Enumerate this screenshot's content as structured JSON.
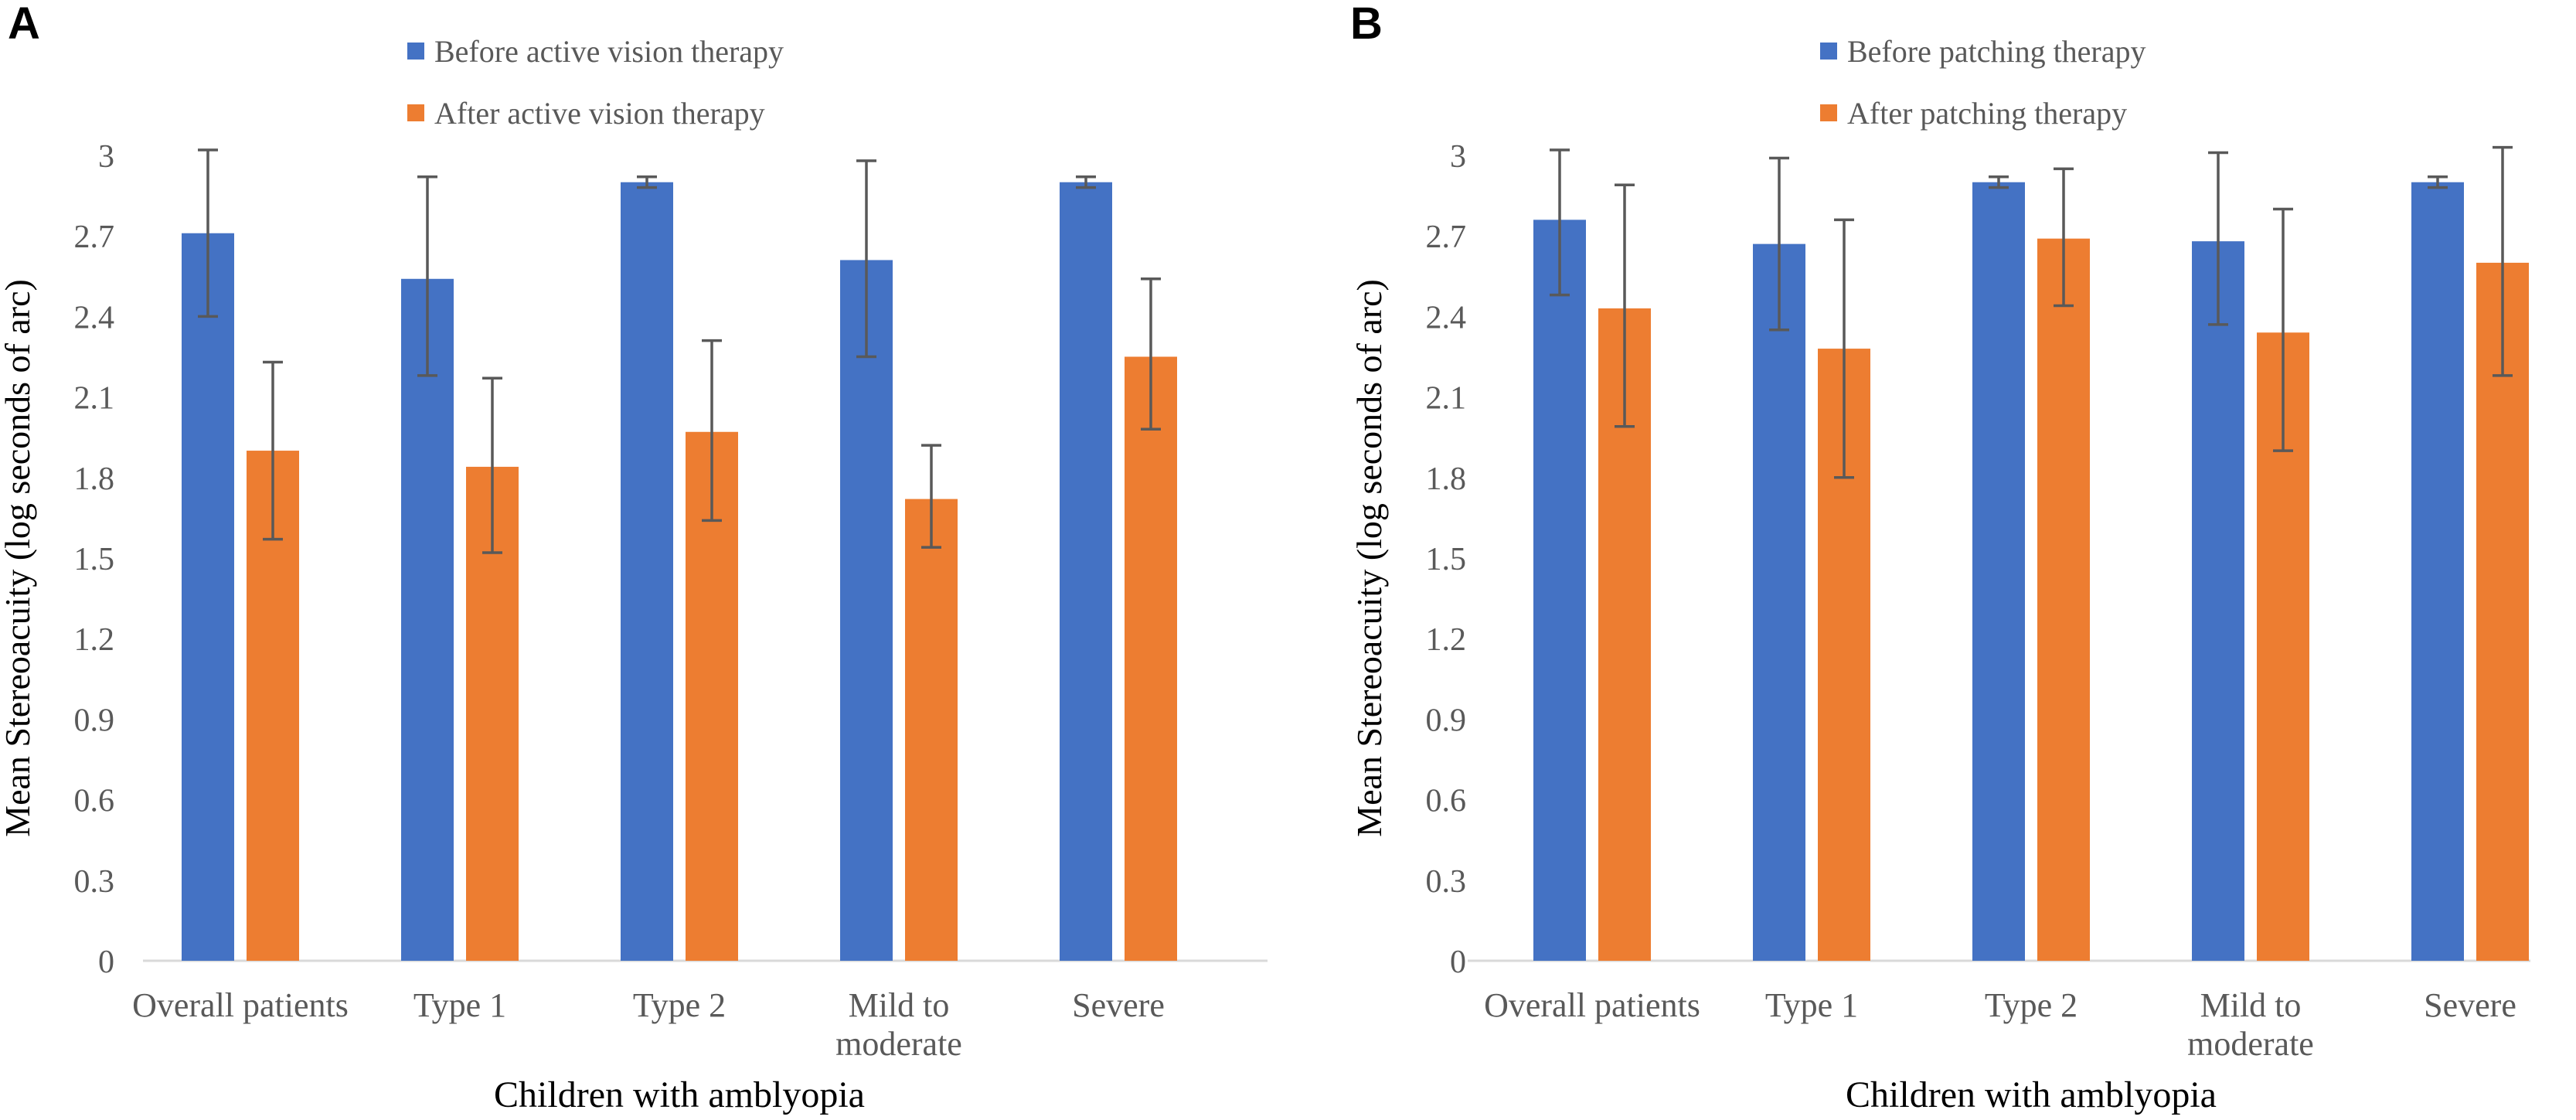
{
  "colors": {
    "before_bar": "#4472C4",
    "after_bar": "#ED7D31",
    "error_bar": "#595959",
    "axis_line": "#D9D9D9",
    "tick_label": "#595959",
    "category_label": "#595959",
    "axis_title": "#000000"
  },
  "chart_data": [
    {
      "type": "bar",
      "panel_label": "A",
      "legend_position": "top-center",
      "grid": false,
      "categories": [
        "Overall patients",
        "Type 1",
        "Type 2",
        "Mild to\nmoderate",
        "Severe"
      ],
      "series": [
        {
          "name": "Before active vision therapy",
          "color": "#4472C4",
          "values": [
            2.71,
            2.54,
            2.9,
            2.61,
            2.9
          ],
          "ci_low": [
            2.4,
            2.18,
            2.88,
            2.25,
            2.88
          ],
          "ci_high": [
            3.02,
            2.92,
            2.92,
            2.98,
            2.92
          ]
        },
        {
          "name": "After active vision therapy",
          "color": "#ED7D31",
          "values": [
            1.9,
            1.84,
            1.97,
            1.72,
            2.25
          ],
          "ci_low": [
            1.57,
            1.52,
            1.64,
            1.54,
            1.98
          ],
          "ci_high": [
            2.23,
            2.17,
            2.31,
            1.92,
            2.54
          ]
        }
      ],
      "xlabel": "Children with amblyopia",
      "ylabel": "Mean Stereoacuity (log seconds of arc)",
      "ylim": [
        0,
        3
      ],
      "yticks": [
        "0",
        "0.3",
        "0.6",
        "0.9",
        "1.2",
        "1.5",
        "1.8",
        "2.1",
        "2.4",
        "2.7",
        "3"
      ],
      "error_bar_color": "#595959"
    },
    {
      "type": "bar",
      "panel_label": "B",
      "legend_position": "top-center",
      "grid": false,
      "categories": [
        "Overall patients",
        "Type 1",
        "Type 2",
        "Mild to\nmoderate",
        "Severe"
      ],
      "series": [
        {
          "name": "Before patching therapy",
          "color": "#4472C4",
          "values": [
            2.76,
            2.67,
            2.9,
            2.68,
            2.9
          ],
          "ci_low": [
            2.48,
            2.35,
            2.88,
            2.37,
            2.88
          ],
          "ci_high": [
            3.02,
            2.99,
            2.92,
            3.01,
            2.92
          ]
        },
        {
          "name": "After patching therapy",
          "color": "#ED7D31",
          "values": [
            2.43,
            2.28,
            2.69,
            2.34,
            2.6
          ],
          "ci_low": [
            1.99,
            1.8,
            2.44,
            1.9,
            2.18
          ],
          "ci_high": [
            2.89,
            2.76,
            2.95,
            2.8,
            3.03
          ]
        }
      ],
      "xlabel": "Children with amblyopia",
      "ylabel": "Mean Stereoacuity (log seconds of arc)",
      "ylim": [
        0,
        3
      ],
      "yticks": [
        "0",
        "0.3",
        "0.6",
        "0.9",
        "1.2",
        "1.5",
        "1.8",
        "2.1",
        "2.4",
        "2.7",
        "3"
      ],
      "error_bar_color": "#595959"
    }
  ]
}
